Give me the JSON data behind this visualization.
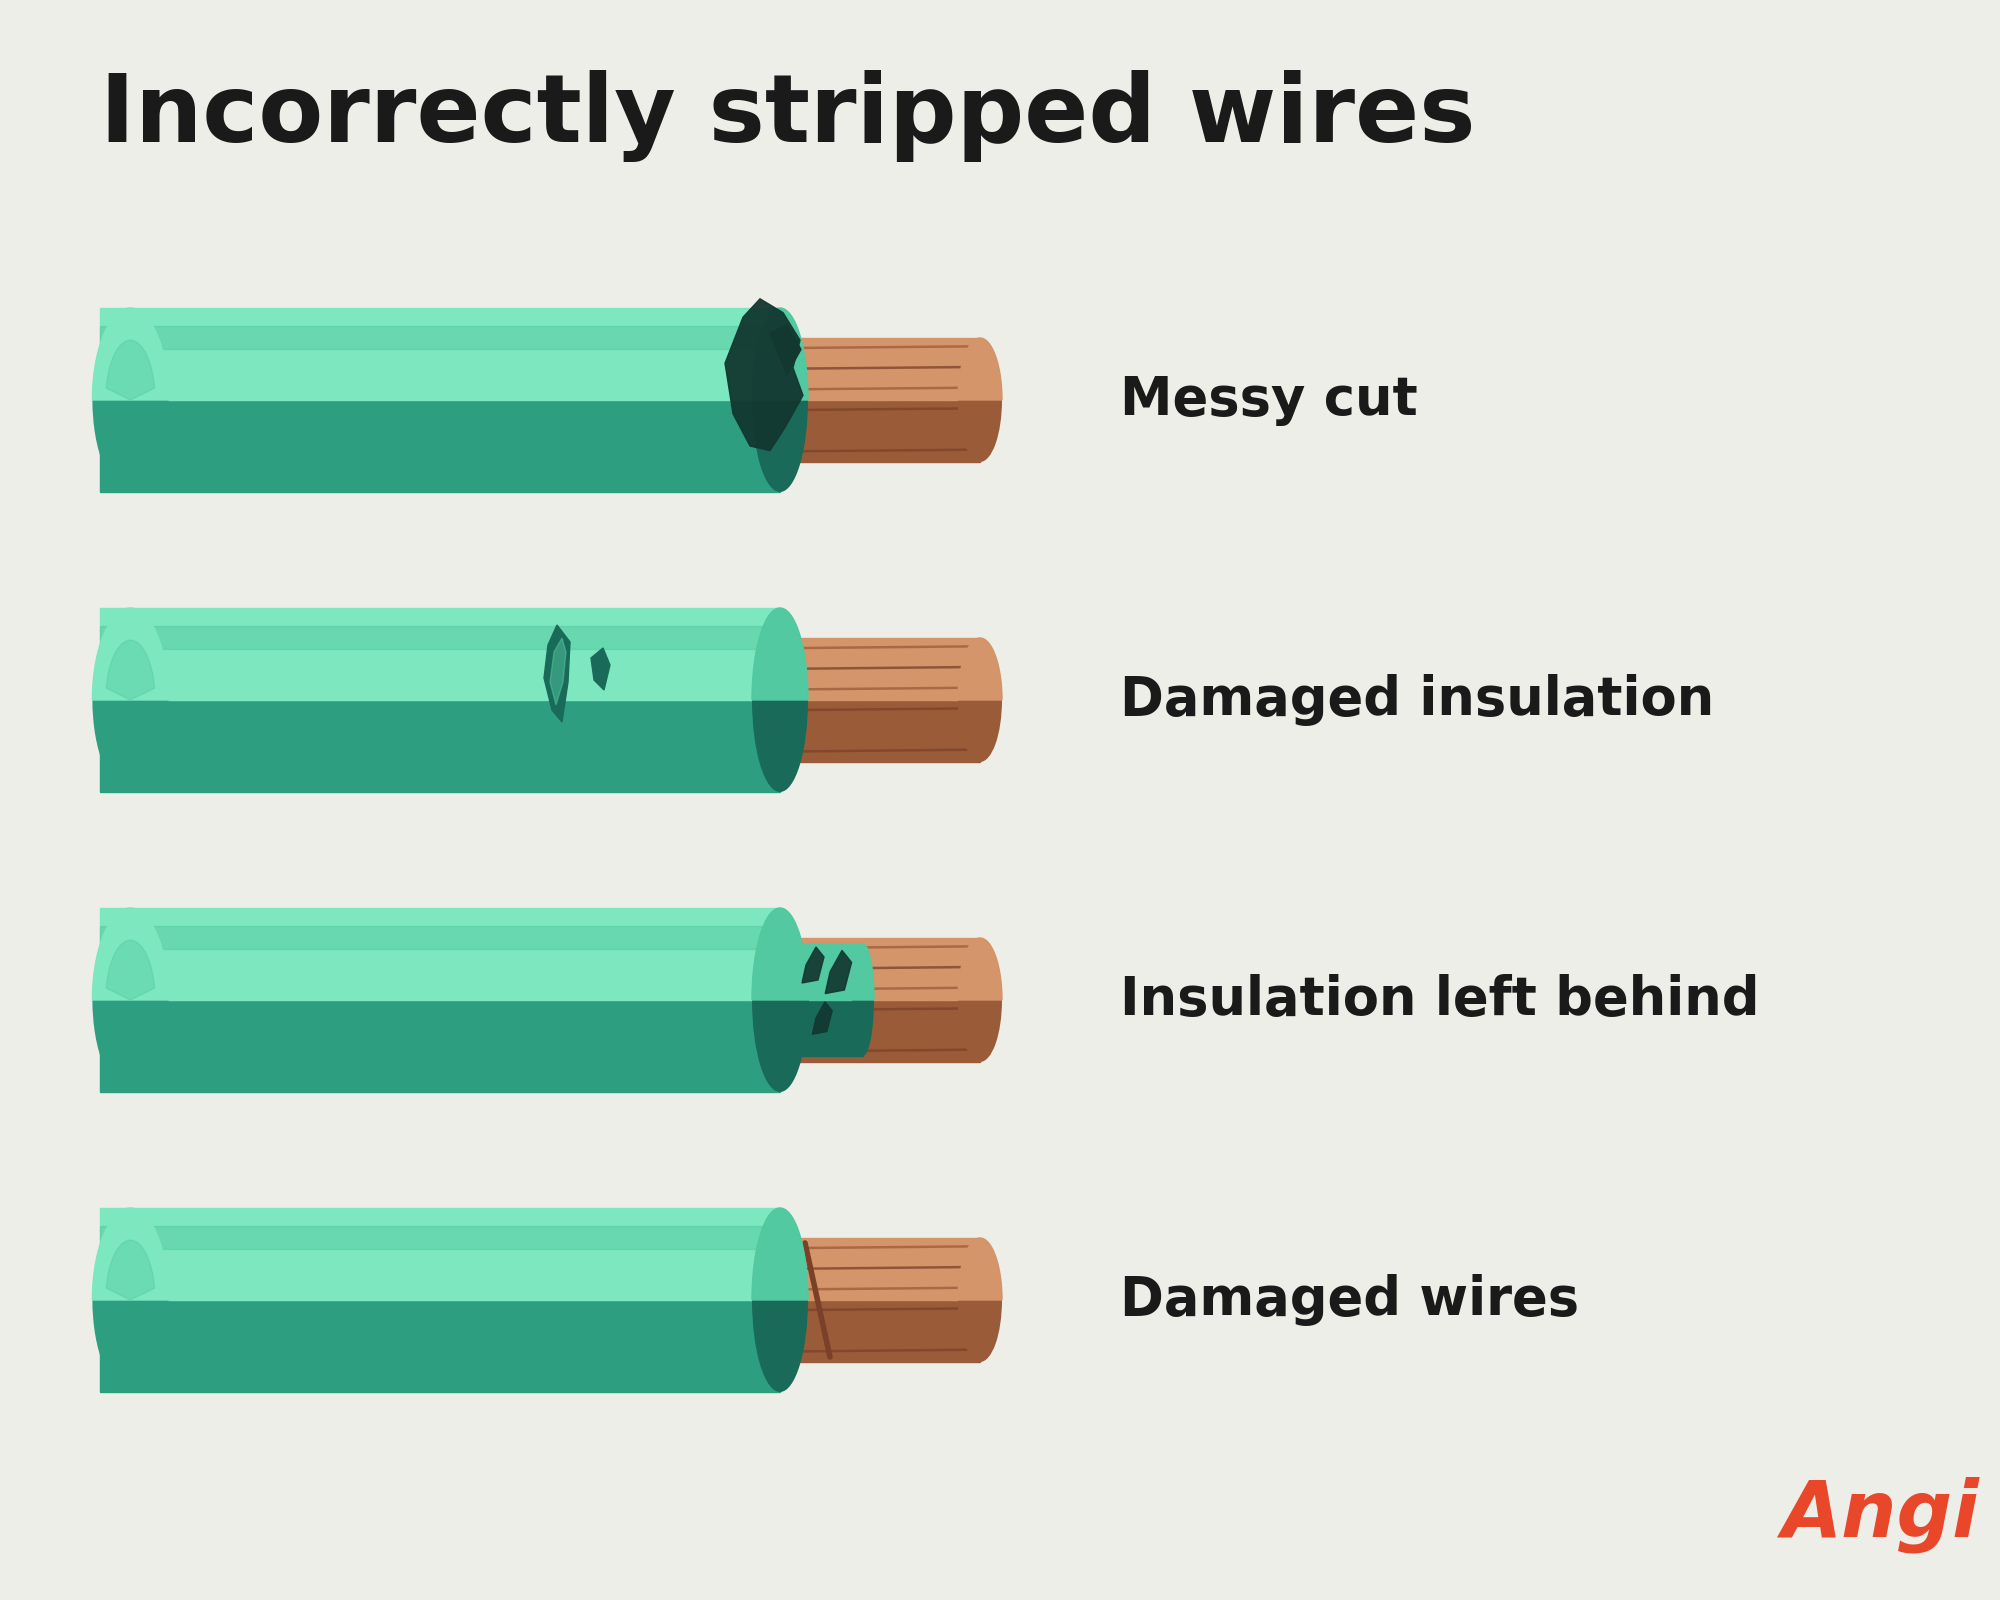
{
  "background_color": "#eeeee8",
  "title": "Incorrectly stripped wires",
  "title_color": "#1a1a1a",
  "title_fontsize": 68,
  "labels": [
    "Messy cut",
    "Damaged insulation",
    "Insulation left behind",
    "Damaged wires"
  ],
  "label_color": "#1a1a1a",
  "label_fontsize": 38,
  "angi_text": "Angi",
  "angi_color": "#e8472a",
  "ins_top": "#7de8c0",
  "ins_mid": "#52c9a0",
  "ins_bot": "#2e9e80",
  "ins_dark_end": "#1a6a5a",
  "cop_top": "#d4956a",
  "cop_mid": "#c07850",
  "cop_bot": "#9a5c38",
  "cop_stripe": "#7a4028",
  "cop_light": "#e8b888",
  "dmg_dark": "#123830"
}
